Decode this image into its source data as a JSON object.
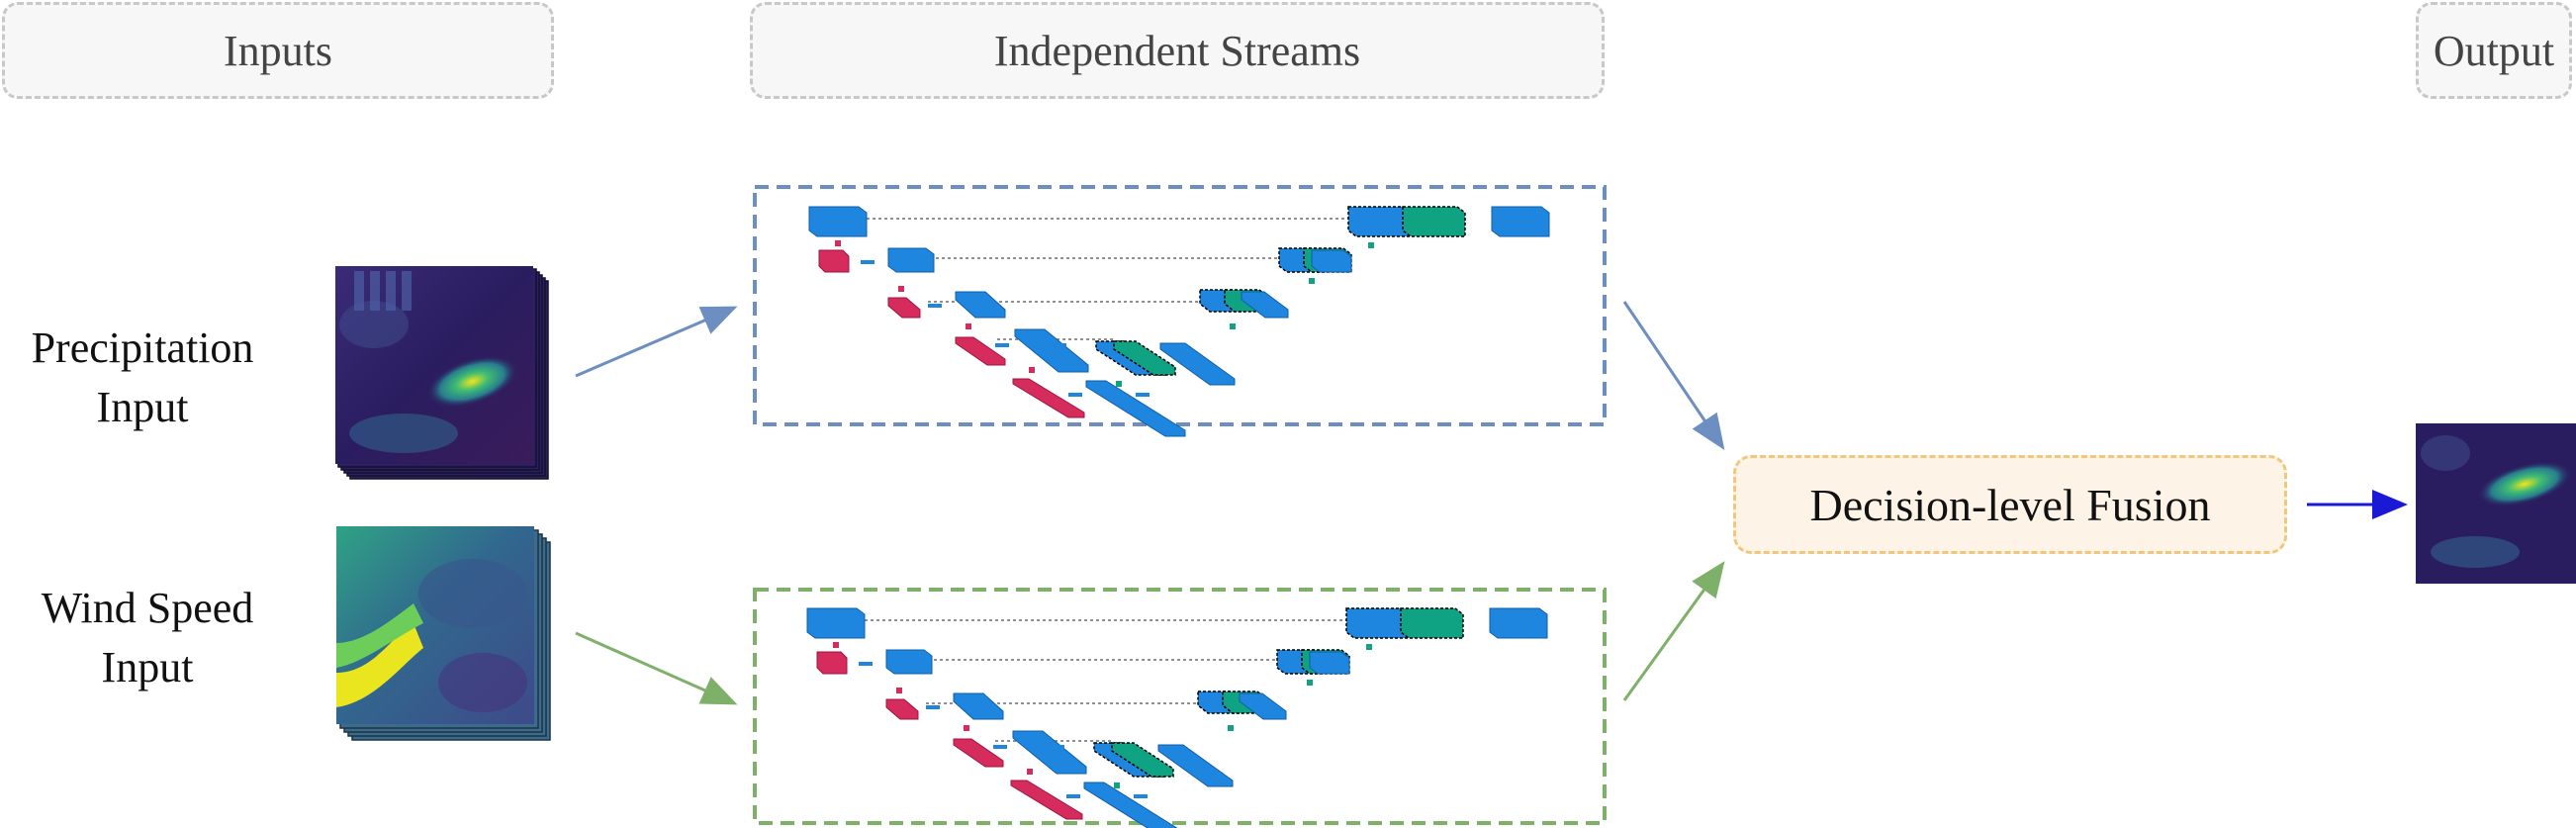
{
  "sections": {
    "inputs": "Inputs",
    "streams": "Independent Streams",
    "output": "Output"
  },
  "inputs": {
    "precipitation": {
      "line1": "Precipitation",
      "line2": "Input"
    },
    "wind": {
      "line1": "Wind Speed",
      "line2": "Input"
    }
  },
  "fusion": {
    "label": "Decision-level Fusion"
  },
  "colors": {
    "precip_stream": "#6d8ec0",
    "wind_stream": "#7fb06a",
    "fusion_border": "#f2c77b",
    "fusion_fill": "#fdf3e6",
    "output_arrow": "#1a1ad6",
    "block_blue": "#1f86e0",
    "block_green": "#10a383",
    "block_red": "#d62b5d"
  },
  "icons": {
    "precip_stack": "precipitation-map-stack-icon",
    "wind_stack": "wind-speed-map-stack-icon",
    "output_map": "output-precipitation-map-icon"
  }
}
